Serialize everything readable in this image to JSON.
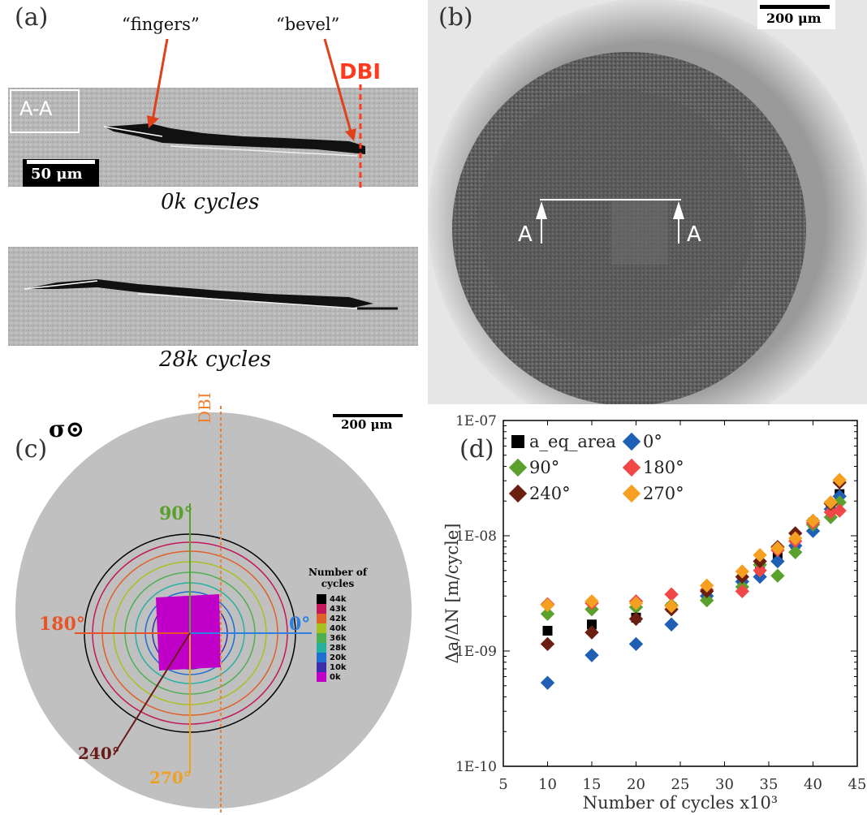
{
  "panel_a": {
    "label": "(a)",
    "annotation_fingers": "“fingers”",
    "annotation_bevel": "“bevel”",
    "dbi_label": "DBI",
    "section_label": "A-A",
    "scale_label": "50 μm",
    "caption_top": "0k cycles",
    "caption_bottom": "28k cycles"
  },
  "panel_b": {
    "label": "(b)",
    "scale_label": "200 μm",
    "section_left": "A",
    "section_right": "A"
  },
  "panel_c": {
    "label": "(c)",
    "stress_symbol": "σ⊙",
    "dbi_label": "DBI",
    "scale_label": "200 μm",
    "angles": [
      {
        "label": "90°",
        "color": "#5aa02c"
      },
      {
        "label": "180°",
        "color": "#e8542a"
      },
      {
        "label": "0°",
        "color": "#2f7fe0"
      },
      {
        "label": "240°",
        "color": "#6b1a1a"
      },
      {
        "label": "270°",
        "color": "#f0a020"
      }
    ],
    "legend_title_1": "Number of",
    "legend_title_2": "cycles",
    "legend": [
      {
        "label": "44k",
        "color": "#000000"
      },
      {
        "label": "43k",
        "color": "#c2185b"
      },
      {
        "label": "42k",
        "color": "#e0602a"
      },
      {
        "label": "40k",
        "color": "#a8c020"
      },
      {
        "label": "36k",
        "color": "#4caf50"
      },
      {
        "label": "28k",
        "color": "#26b0a0"
      },
      {
        "label": "20k",
        "color": "#1e6fd0"
      },
      {
        "label": "10k",
        "color": "#3a2fa8"
      },
      {
        "label": "0k",
        "color": "#c000c8"
      }
    ]
  },
  "panel_d": {
    "label": "(d)"
  },
  "chart_data": {
    "type": "scatter",
    "xlabel": "Number of cycles x10³",
    "ylabel": "Δa/ΔN [m/cycle]",
    "xlim": [
      5,
      45
    ],
    "ylim": [
      1e-10,
      1e-07
    ],
    "log_y": true,
    "x_ticks": [
      "5",
      "10",
      "15",
      "20",
      "25",
      "30",
      "35",
      "40",
      "45"
    ],
    "y_ticks": [
      "1E-10",
      "1E-09",
      "1E-08",
      "1E-07"
    ],
    "legend_position": "top-left",
    "series": [
      {
        "name": "a_eq_area",
        "marker": "square",
        "color": "#000000",
        "x": [
          10,
          15,
          20,
          24,
          28,
          32,
          34,
          36,
          38,
          40,
          42,
          43
        ],
        "y": [
          1.5e-09,
          1.7e-09,
          1.95e-09,
          2.4e-09,
          3.1e-09,
          4.2e-09,
          5.2e-09,
          6.5e-09,
          8.5e-09,
          1.3e-08,
          1.75e-08,
          2.3e-08
        ]
      },
      {
        "name": "0°",
        "marker": "diamond",
        "color": "#1f5fb4",
        "x": [
          10,
          15,
          20,
          24,
          28,
          32,
          34,
          36,
          38,
          40,
          42,
          43
        ],
        "y": [
          5.3e-10,
          9.2e-10,
          1.15e-09,
          1.7e-09,
          3e-09,
          4e-09,
          4.4e-09,
          6e-09,
          8.2e-09,
          1.1e-08,
          1.7e-08,
          2.2e-08
        ]
      },
      {
        "name": "90°",
        "marker": "diamond",
        "color": "#5aa02c",
        "x": [
          10,
          15,
          20,
          24,
          28,
          32,
          34,
          36,
          38,
          40,
          42,
          43
        ],
        "y": [
          2.1e-09,
          2.3e-09,
          2.4e-09,
          2.5e-09,
          2.75e-09,
          3.6e-09,
          5.6e-09,
          4.5e-09,
          7.2e-09,
          1.25e-08,
          1.45e-08,
          1.95e-08
        ]
      },
      {
        "name": "180°",
        "marker": "diamond",
        "color": "#f04848",
        "x": [
          10,
          15,
          20,
          24,
          28,
          32,
          34,
          36,
          38,
          40,
          42,
          43
        ],
        "y": [
          2.55e-09,
          2.6e-09,
          2.7e-09,
          3.1e-09,
          3.4e-09,
          3.3e-09,
          5e-09,
          7.5e-09,
          9e-09,
          1.3e-08,
          1.6e-08,
          1.65e-08
        ]
      },
      {
        "name": "240°",
        "marker": "diamond",
        "color": "#6b1f10",
        "x": [
          10,
          15,
          20,
          24,
          28,
          32,
          34,
          36,
          38,
          40,
          42,
          43
        ],
        "y": [
          1.15e-09,
          1.45e-09,
          1.9e-09,
          2.3e-09,
          3.3e-09,
          4.4e-09,
          6e-09,
          8e-09,
          1.05e-08,
          1.35e-08,
          1.9e-08,
          2.9e-08
        ]
      },
      {
        "name": "270°",
        "marker": "diamond",
        "color": "#f5a020",
        "x": [
          10,
          15,
          20,
          24,
          28,
          32,
          34,
          36,
          38,
          40,
          42,
          43
        ],
        "y": [
          2.5e-09,
          2.7e-09,
          2.6e-09,
          2.45e-09,
          3.7e-09,
          4.9e-09,
          6.8e-09,
          7.8e-09,
          9.5e-09,
          1.35e-08,
          1.95e-08,
          3.05e-08
        ]
      }
    ]
  }
}
